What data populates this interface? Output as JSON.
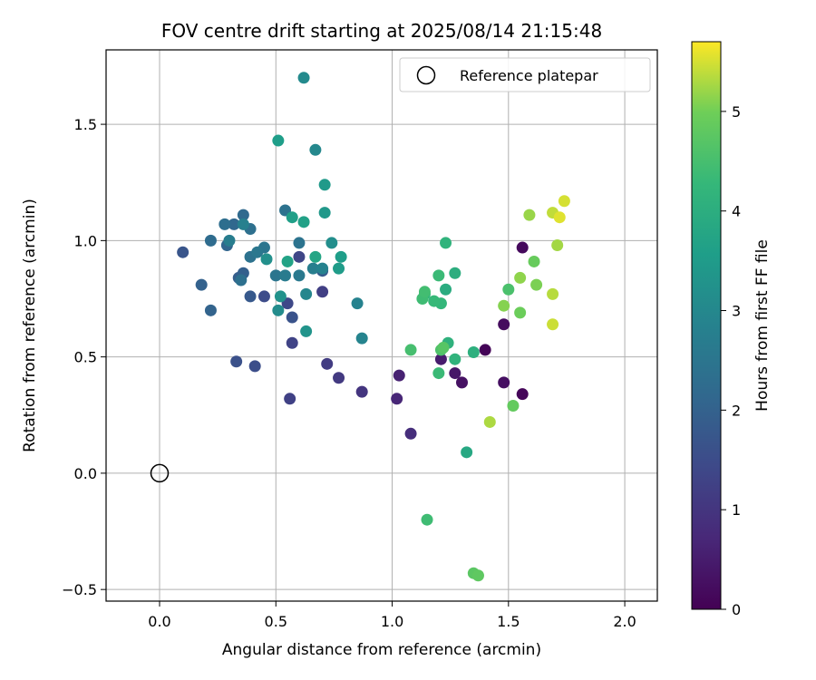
{
  "chart_data": {
    "type": "scatter",
    "title": "FOV centre drift starting at 2025/08/14 21:15:48",
    "xlabel": "Angular distance from reference (arcmin)",
    "ylabel": "Rotation from reference (arcmin)",
    "xlim": [
      -0.23,
      2.14
    ],
    "ylim": [
      -0.55,
      1.82
    ],
    "xticks": [
      0.0,
      0.5,
      1.0,
      1.5,
      2.0
    ],
    "xtick_labels": [
      "0.0",
      "0.5",
      "1.0",
      "1.5",
      "2.0"
    ],
    "yticks": [
      -0.5,
      0.0,
      0.5,
      1.0,
      1.5
    ],
    "ytick_labels": [
      "−0.5",
      "0.0",
      "0.5",
      "1.0",
      "1.5"
    ],
    "grid": true,
    "legend": {
      "placement": "top-right",
      "entries": [
        "Reference platepar"
      ]
    },
    "reference_point": {
      "x": 0.0,
      "y": 0.0
    },
    "colorbar": {
      "label": "Hours from first FF file",
      "colormap": "viridis",
      "range": [
        0,
        5.7
      ],
      "ticks": [
        0,
        1,
        2,
        3,
        4,
        5
      ],
      "tick_labels": [
        "0",
        "1",
        "2",
        "3",
        "4",
        "5"
      ]
    },
    "points": [
      {
        "x": 1.4,
        "y": 0.53,
        "c": 0.05
      },
      {
        "x": 1.56,
        "y": 0.34,
        "c": 0.1
      },
      {
        "x": 1.56,
        "y": 0.97,
        "c": 0.15
      },
      {
        "x": 1.48,
        "y": 0.64,
        "c": 0.2
      },
      {
        "x": 1.48,
        "y": 0.39,
        "c": 0.25
      },
      {
        "x": 1.3,
        "y": 0.39,
        "c": 0.3
      },
      {
        "x": 1.27,
        "y": 0.43,
        "c": 0.4
      },
      {
        "x": 1.21,
        "y": 0.49,
        "c": 0.5
      },
      {
        "x": 1.03,
        "y": 0.42,
        "c": 0.6
      },
      {
        "x": 1.02,
        "y": 0.32,
        "c": 0.7
      },
      {
        "x": 1.08,
        "y": 0.17,
        "c": 0.85
      },
      {
        "x": 0.87,
        "y": 0.35,
        "c": 1.0
      },
      {
        "x": 0.77,
        "y": 0.41,
        "c": 1.1
      },
      {
        "x": 0.72,
        "y": 0.47,
        "c": 1.15
      },
      {
        "x": 0.7,
        "y": 0.78,
        "c": 1.2
      },
      {
        "x": 0.56,
        "y": 0.32,
        "c": 1.25
      },
      {
        "x": 0.57,
        "y": 0.56,
        "c": 1.3
      },
      {
        "x": 0.6,
        "y": 0.93,
        "c": 1.35
      },
      {
        "x": 0.55,
        "y": 0.73,
        "c": 1.4
      },
      {
        "x": 0.45,
        "y": 0.76,
        "c": 1.5
      },
      {
        "x": 0.41,
        "y": 0.46,
        "c": 1.55
      },
      {
        "x": 0.33,
        "y": 0.48,
        "c": 1.6
      },
      {
        "x": 0.57,
        "y": 0.67,
        "c": 1.65
      },
      {
        "x": 0.1,
        "y": 0.95,
        "c": 1.7
      },
      {
        "x": 0.39,
        "y": 0.76,
        "c": 1.8
      },
      {
        "x": 0.7,
        "y": 0.87,
        "c": 1.85
      },
      {
        "x": 0.34,
        "y": 0.84,
        "c": 1.9
      },
      {
        "x": 0.36,
        "y": 0.86,
        "c": 1.95
      },
      {
        "x": 0.18,
        "y": 0.81,
        "c": 2.0
      },
      {
        "x": 0.22,
        "y": 0.7,
        "c": 2.05
      },
      {
        "x": 0.29,
        "y": 0.98,
        "c": 2.1
      },
      {
        "x": 0.32,
        "y": 1.07,
        "c": 2.15
      },
      {
        "x": 0.36,
        "y": 1.11,
        "c": 2.2
      },
      {
        "x": 0.22,
        "y": 1.0,
        "c": 2.25
      },
      {
        "x": 0.28,
        "y": 1.07,
        "c": 2.3
      },
      {
        "x": 0.39,
        "y": 1.05,
        "c": 2.35
      },
      {
        "x": 0.35,
        "y": 0.83,
        "c": 2.35
      },
      {
        "x": 0.54,
        "y": 1.13,
        "c": 2.4
      },
      {
        "x": 0.39,
        "y": 0.93,
        "c": 2.4
      },
      {
        "x": 0.6,
        "y": 0.99,
        "c": 2.45
      },
      {
        "x": 0.5,
        "y": 0.85,
        "c": 2.5
      },
      {
        "x": 0.45,
        "y": 0.97,
        "c": 2.5
      },
      {
        "x": 0.42,
        "y": 0.95,
        "c": 2.55
      },
      {
        "x": 0.6,
        "y": 0.85,
        "c": 2.6
      },
      {
        "x": 0.54,
        "y": 0.85,
        "c": 2.65
      },
      {
        "x": 0.3,
        "y": 1.0,
        "c": 2.7
      },
      {
        "x": 0.66,
        "y": 0.88,
        "c": 2.75
      },
      {
        "x": 0.36,
        "y": 1.07,
        "c": 2.8
      },
      {
        "x": 0.7,
        "y": 0.88,
        "c": 2.85
      },
      {
        "x": 0.85,
        "y": 0.73,
        "c": 2.85
      },
      {
        "x": 0.87,
        "y": 0.58,
        "c": 2.9
      },
      {
        "x": 0.63,
        "y": 0.77,
        "c": 2.95
      },
      {
        "x": 0.67,
        "y": 1.39,
        "c": 3.0
      },
      {
        "x": 0.62,
        "y": 1.7,
        "c": 3.05
      },
      {
        "x": 0.51,
        "y": 0.7,
        "c": 3.1
      },
      {
        "x": 0.74,
        "y": 0.99,
        "c": 3.15
      },
      {
        "x": 0.46,
        "y": 0.92,
        "c": 3.2
      },
      {
        "x": 0.52,
        "y": 0.76,
        "c": 3.25
      },
      {
        "x": 0.63,
        "y": 0.61,
        "c": 3.3
      },
      {
        "x": 0.71,
        "y": 1.12,
        "c": 3.4
      },
      {
        "x": 0.71,
        "y": 1.24,
        "c": 3.45
      },
      {
        "x": 0.77,
        "y": 0.88,
        "c": 3.5
      },
      {
        "x": 0.78,
        "y": 0.93,
        "c": 3.55
      },
      {
        "x": 0.51,
        "y": 1.43,
        "c": 3.55
      },
      {
        "x": 0.57,
        "y": 1.1,
        "c": 3.6
      },
      {
        "x": 0.62,
        "y": 1.08,
        "c": 3.65
      },
      {
        "x": 0.55,
        "y": 0.91,
        "c": 3.7
      },
      {
        "x": 0.67,
        "y": 0.93,
        "c": 3.75
      },
      {
        "x": 1.32,
        "y": 0.09,
        "c": 3.85
      },
      {
        "x": 1.23,
        "y": 0.79,
        "c": 3.95
      },
      {
        "x": 1.27,
        "y": 0.86,
        "c": 4.0
      },
      {
        "x": 1.35,
        "y": 0.52,
        "c": 4.05
      },
      {
        "x": 1.24,
        "y": 0.56,
        "c": 4.1
      },
      {
        "x": 1.27,
        "y": 0.49,
        "c": 4.15
      },
      {
        "x": 1.23,
        "y": 0.99,
        "c": 4.15
      },
      {
        "x": 1.14,
        "y": 0.77,
        "c": 4.2
      },
      {
        "x": 1.21,
        "y": 0.73,
        "c": 4.25
      },
      {
        "x": 1.18,
        "y": 0.74,
        "c": 4.3
      },
      {
        "x": 1.2,
        "y": 0.43,
        "c": 4.35
      },
      {
        "x": 1.2,
        "y": 0.85,
        "c": 4.35
      },
      {
        "x": 1.13,
        "y": 0.75,
        "c": 4.4
      },
      {
        "x": 1.15,
        "y": -0.2,
        "c": 4.4
      },
      {
        "x": 1.14,
        "y": 0.78,
        "c": 4.45
      },
      {
        "x": 1.08,
        "y": 0.53,
        "c": 4.5
      },
      {
        "x": 1.5,
        "y": 0.79,
        "c": 4.55
      },
      {
        "x": 1.21,
        "y": 0.53,
        "c": 4.6
      },
      {
        "x": 1.22,
        "y": 0.54,
        "c": 4.7
      },
      {
        "x": 1.35,
        "y": -0.43,
        "c": 4.75
      },
      {
        "x": 1.37,
        "y": -0.44,
        "c": 4.8
      },
      {
        "x": 1.52,
        "y": 0.29,
        "c": 4.85
      },
      {
        "x": 1.61,
        "y": 0.91,
        "c": 4.9
      },
      {
        "x": 1.55,
        "y": 0.69,
        "c": 4.95
      },
      {
        "x": 1.62,
        "y": 0.81,
        "c": 5.05
      },
      {
        "x": 1.48,
        "y": 0.72,
        "c": 5.1
      },
      {
        "x": 1.55,
        "y": 0.84,
        "c": 5.15
      },
      {
        "x": 1.59,
        "y": 1.11,
        "c": 5.2
      },
      {
        "x": 1.71,
        "y": 0.98,
        "c": 5.25
      },
      {
        "x": 1.42,
        "y": 0.22,
        "c": 5.3
      },
      {
        "x": 1.69,
        "y": 0.77,
        "c": 5.35
      },
      {
        "x": 1.69,
        "y": 1.12,
        "c": 5.4
      },
      {
        "x": 1.69,
        "y": 0.64,
        "c": 5.45
      },
      {
        "x": 1.74,
        "y": 1.17,
        "c": 5.5
      },
      {
        "x": 1.72,
        "y": 1.1,
        "c": 5.55
      }
    ]
  }
}
